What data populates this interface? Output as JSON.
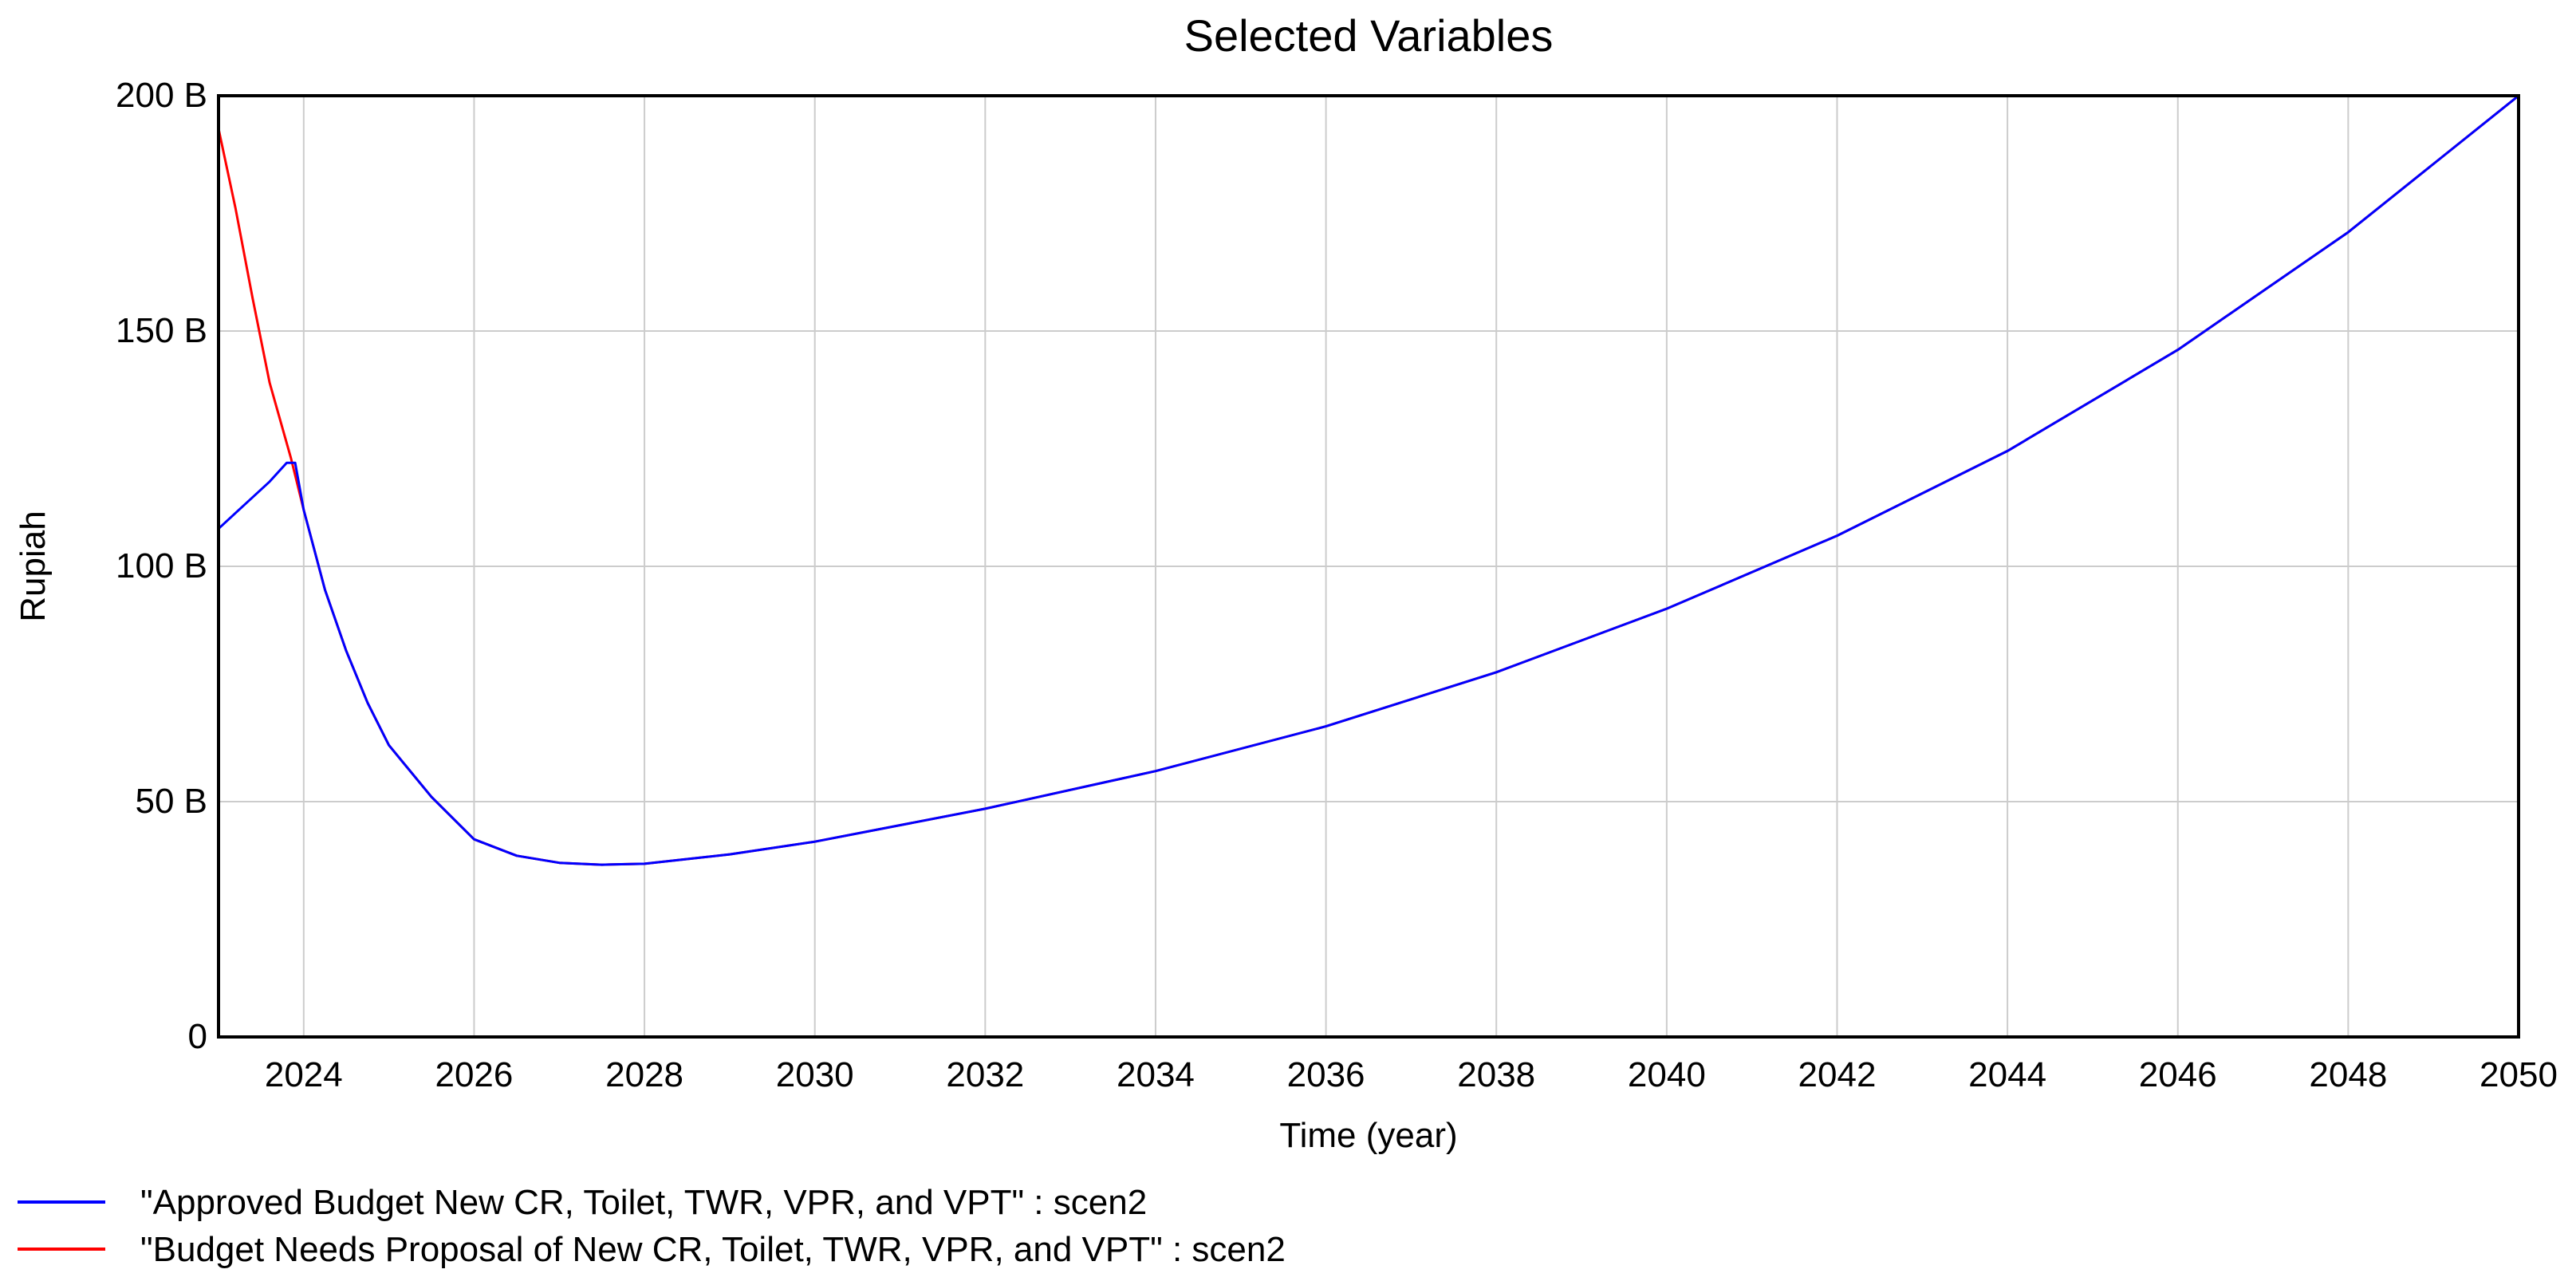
{
  "chart_data": {
    "type": "line",
    "title": "Selected Variables",
    "xlabel": "Time (year)",
    "ylabel": "Rupiah",
    "xlim": [
      2023,
      2050
    ],
    "ylim": [
      0,
      200
    ],
    "grid": true,
    "legend_position": "bottom-left",
    "x_ticks": [
      2024,
      2026,
      2028,
      2030,
      2032,
      2034,
      2036,
      2038,
      2040,
      2042,
      2044,
      2046,
      2048,
      2050
    ],
    "y_ticks": [
      {
        "value": 0,
        "label": "0"
      },
      {
        "value": 50,
        "label": "50 B"
      },
      {
        "value": 100,
        "label": "100 B"
      },
      {
        "value": 150,
        "label": "150 B"
      },
      {
        "value": 200,
        "label": "200 B"
      }
    ],
    "series": [
      {
        "name": "\"Approved Budget New CR, Toilet, TWR, VPR, and VPT\" : scen2",
        "color": "#0000ff",
        "points": [
          [
            2023.0,
            108
          ],
          [
            2023.3,
            113
          ],
          [
            2023.6,
            118
          ],
          [
            2023.8,
            122
          ],
          [
            2023.9,
            122
          ],
          [
            2024.0,
            112
          ],
          [
            2024.25,
            95
          ],
          [
            2024.5,
            82
          ],
          [
            2024.75,
            71
          ],
          [
            2025.0,
            62
          ],
          [
            2025.5,
            51
          ],
          [
            2026.0,
            42
          ],
          [
            2026.5,
            38.5
          ],
          [
            2027.0,
            37
          ],
          [
            2027.5,
            36.6
          ],
          [
            2028.0,
            36.8
          ],
          [
            2029.0,
            38.8
          ],
          [
            2030.0,
            41.5
          ],
          [
            2032.0,
            48.5
          ],
          [
            2034.0,
            56.5
          ],
          [
            2036.0,
            66
          ],
          [
            2038.0,
            77.5
          ],
          [
            2040.0,
            91
          ],
          [
            2042.0,
            106.5
          ],
          [
            2044.0,
            124.5
          ],
          [
            2046.0,
            146
          ],
          [
            2048.0,
            171
          ],
          [
            2050.0,
            200
          ]
        ]
      },
      {
        "name": "\"Budget Needs Proposal of New CR, Toilet, TWR, VPR, and VPT\" : scen2",
        "color": "#ff0000",
        "points": [
          [
            2023.0,
            193
          ],
          [
            2023.2,
            176
          ],
          [
            2023.4,
            157
          ],
          [
            2023.6,
            139
          ],
          [
            2023.85,
            123
          ],
          [
            2024.0,
            112
          ],
          [
            2024.25,
            95
          ],
          [
            2024.5,
            82
          ],
          [
            2024.75,
            71
          ],
          [
            2025.0,
            62
          ],
          [
            2025.5,
            51
          ],
          [
            2026.0,
            42
          ],
          [
            2026.5,
            38.5
          ],
          [
            2027.0,
            37
          ],
          [
            2027.5,
            36.6
          ],
          [
            2028.0,
            36.8
          ],
          [
            2029.0,
            38.8
          ],
          [
            2030.0,
            41.5
          ],
          [
            2032.0,
            48.5
          ],
          [
            2034.0,
            56.5
          ],
          [
            2036.0,
            66
          ],
          [
            2038.0,
            77.5
          ],
          [
            2040.0,
            91
          ],
          [
            2042.0,
            106.5
          ],
          [
            2044.0,
            124.5
          ],
          [
            2046.0,
            146
          ],
          [
            2048.0,
            171
          ],
          [
            2050.0,
            200
          ]
        ]
      }
    ]
  }
}
